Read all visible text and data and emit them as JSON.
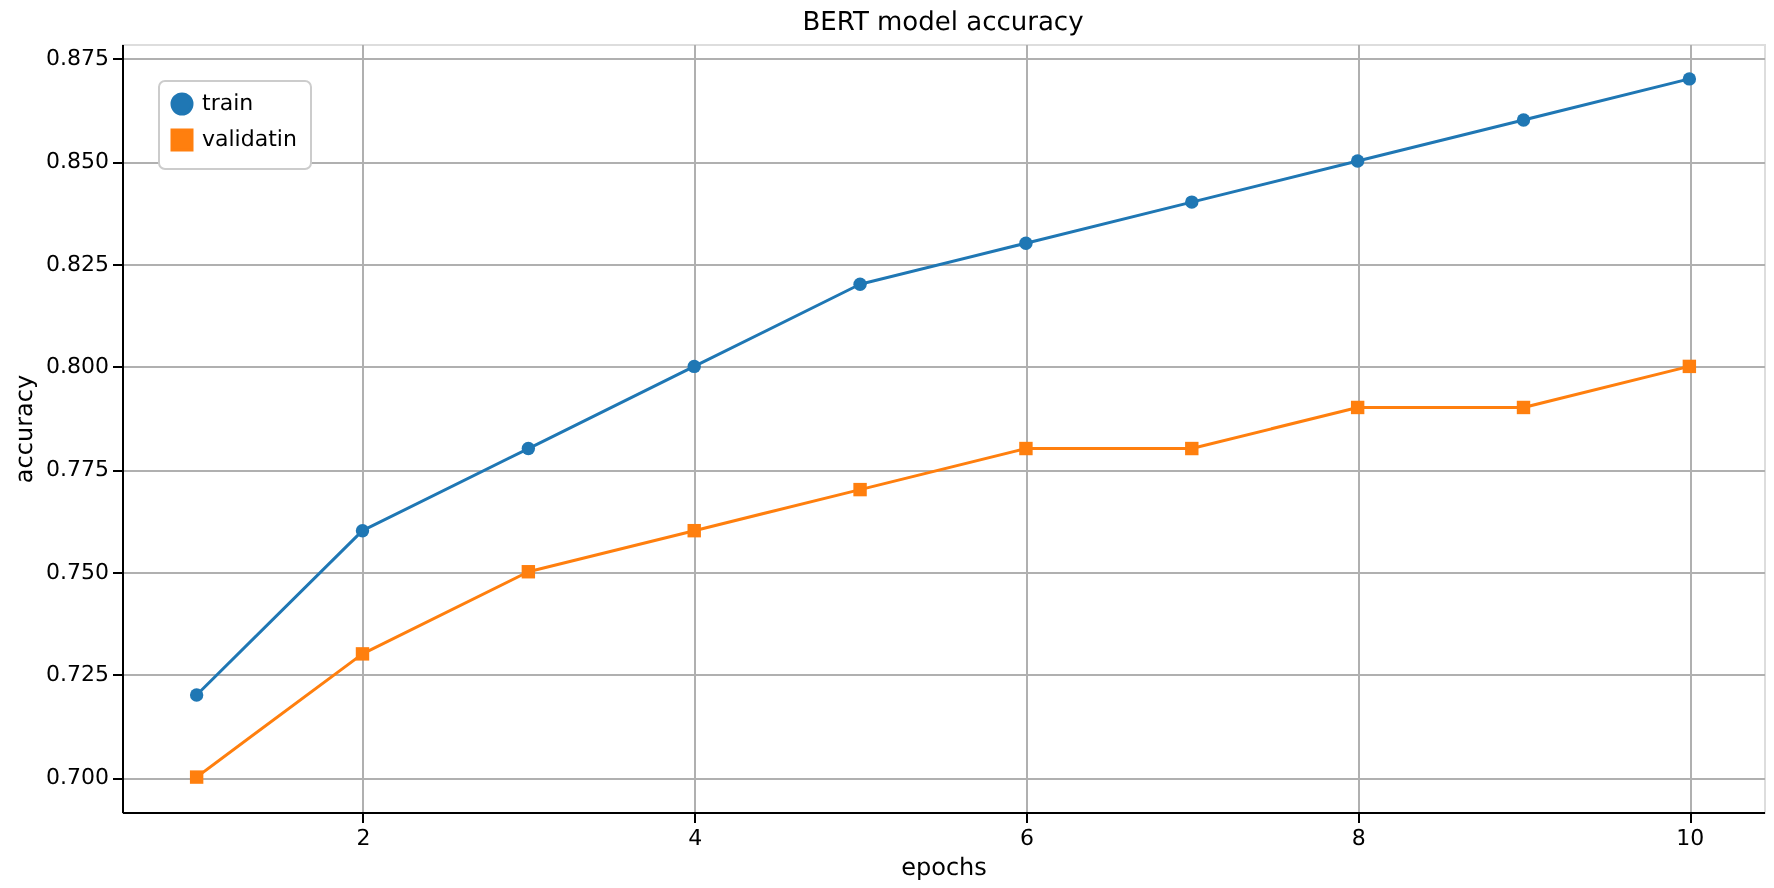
{
  "chart_data": {
    "type": "line",
    "title": "BERT model accuracy",
    "xlabel": "epochs",
    "ylabel": "accuracy",
    "x": [
      1,
      2,
      3,
      4,
      5,
      6,
      7,
      8,
      9,
      10
    ],
    "series": [
      {
        "name": "train",
        "color": "#1f77b4",
        "marker": "circle",
        "values": [
          0.72,
          0.76,
          0.78,
          0.8,
          0.82,
          0.83,
          0.84,
          0.85,
          0.86,
          0.87
        ]
      },
      {
        "name": "validatin",
        "color": "#ff7f0e",
        "marker": "square",
        "values": [
          0.7,
          0.73,
          0.75,
          0.76,
          0.77,
          0.78,
          0.78,
          0.79,
          0.79,
          0.8
        ]
      }
    ],
    "xlim": [
      0.55,
      10.45
    ],
    "ylim": [
      0.6915,
      0.8785
    ],
    "xticks": [
      2,
      4,
      6,
      8,
      10
    ],
    "yticks": [
      {
        "value": 0.7,
        "label": "0.700"
      },
      {
        "value": 0.725,
        "label": "0.725"
      },
      {
        "value": 0.75,
        "label": "0.750"
      },
      {
        "value": 0.775,
        "label": "0.775"
      },
      {
        "value": 0.8,
        "label": "0.800"
      },
      {
        "value": 0.825,
        "label": "0.825"
      },
      {
        "value": 0.85,
        "label": "0.850"
      },
      {
        "value": 0.875,
        "label": "0.875"
      }
    ],
    "grid": true,
    "legend": "top left",
    "line_style": "solid"
  }
}
